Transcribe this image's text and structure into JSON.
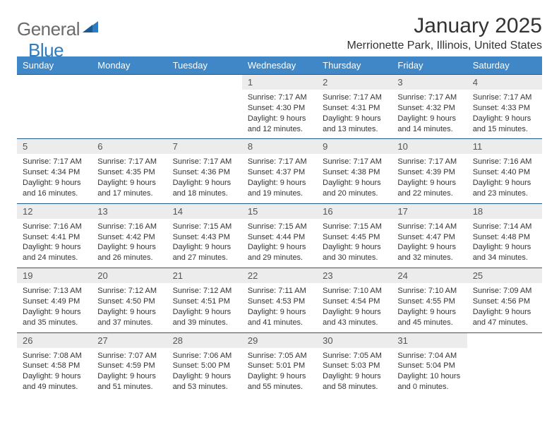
{
  "logo": {
    "word1": "General",
    "word2": "Blue"
  },
  "title": "January 2025",
  "location": "Merrionette Park, Illinois, United States",
  "header_bg": "#3f87c6",
  "weekdays": [
    "Sunday",
    "Monday",
    "Tuesday",
    "Wednesday",
    "Thursday",
    "Friday",
    "Saturday"
  ],
  "weeks": [
    {
      "nums": [
        "",
        "",
        "",
        "1",
        "2",
        "3",
        "4"
      ],
      "cells": [
        null,
        null,
        null,
        {
          "sunrise": "7:17 AM",
          "sunset": "4:30 PM",
          "daylight": "9 hours and 12 minutes."
        },
        {
          "sunrise": "7:17 AM",
          "sunset": "4:31 PM",
          "daylight": "9 hours and 13 minutes."
        },
        {
          "sunrise": "7:17 AM",
          "sunset": "4:32 PM",
          "daylight": "9 hours and 14 minutes."
        },
        {
          "sunrise": "7:17 AM",
          "sunset": "4:33 PM",
          "daylight": "9 hours and 15 minutes."
        }
      ]
    },
    {
      "nums": [
        "5",
        "6",
        "7",
        "8",
        "9",
        "10",
        "11"
      ],
      "cells": [
        {
          "sunrise": "7:17 AM",
          "sunset": "4:34 PM",
          "daylight": "9 hours and 16 minutes."
        },
        {
          "sunrise": "7:17 AM",
          "sunset": "4:35 PM",
          "daylight": "9 hours and 17 minutes."
        },
        {
          "sunrise": "7:17 AM",
          "sunset": "4:36 PM",
          "daylight": "9 hours and 18 minutes."
        },
        {
          "sunrise": "7:17 AM",
          "sunset": "4:37 PM",
          "daylight": "9 hours and 19 minutes."
        },
        {
          "sunrise": "7:17 AM",
          "sunset": "4:38 PM",
          "daylight": "9 hours and 20 minutes."
        },
        {
          "sunrise": "7:17 AM",
          "sunset": "4:39 PM",
          "daylight": "9 hours and 22 minutes."
        },
        {
          "sunrise": "7:16 AM",
          "sunset": "4:40 PM",
          "daylight": "9 hours and 23 minutes."
        }
      ]
    },
    {
      "nums": [
        "12",
        "13",
        "14",
        "15",
        "16",
        "17",
        "18"
      ],
      "cells": [
        {
          "sunrise": "7:16 AM",
          "sunset": "4:41 PM",
          "daylight": "9 hours and 24 minutes."
        },
        {
          "sunrise": "7:16 AM",
          "sunset": "4:42 PM",
          "daylight": "9 hours and 26 minutes."
        },
        {
          "sunrise": "7:15 AM",
          "sunset": "4:43 PM",
          "daylight": "9 hours and 27 minutes."
        },
        {
          "sunrise": "7:15 AM",
          "sunset": "4:44 PM",
          "daylight": "9 hours and 29 minutes."
        },
        {
          "sunrise": "7:15 AM",
          "sunset": "4:45 PM",
          "daylight": "9 hours and 30 minutes."
        },
        {
          "sunrise": "7:14 AM",
          "sunset": "4:47 PM",
          "daylight": "9 hours and 32 minutes."
        },
        {
          "sunrise": "7:14 AM",
          "sunset": "4:48 PM",
          "daylight": "9 hours and 34 minutes."
        }
      ]
    },
    {
      "nums": [
        "19",
        "20",
        "21",
        "22",
        "23",
        "24",
        "25"
      ],
      "cells": [
        {
          "sunrise": "7:13 AM",
          "sunset": "4:49 PM",
          "daylight": "9 hours and 35 minutes."
        },
        {
          "sunrise": "7:12 AM",
          "sunset": "4:50 PM",
          "daylight": "9 hours and 37 minutes."
        },
        {
          "sunrise": "7:12 AM",
          "sunset": "4:51 PM",
          "daylight": "9 hours and 39 minutes."
        },
        {
          "sunrise": "7:11 AM",
          "sunset": "4:53 PM",
          "daylight": "9 hours and 41 minutes."
        },
        {
          "sunrise": "7:10 AM",
          "sunset": "4:54 PM",
          "daylight": "9 hours and 43 minutes."
        },
        {
          "sunrise": "7:10 AM",
          "sunset": "4:55 PM",
          "daylight": "9 hours and 45 minutes."
        },
        {
          "sunrise": "7:09 AM",
          "sunset": "4:56 PM",
          "daylight": "9 hours and 47 minutes."
        }
      ]
    },
    {
      "nums": [
        "26",
        "27",
        "28",
        "29",
        "30",
        "31",
        ""
      ],
      "cells": [
        {
          "sunrise": "7:08 AM",
          "sunset": "4:58 PM",
          "daylight": "9 hours and 49 minutes."
        },
        {
          "sunrise": "7:07 AM",
          "sunset": "4:59 PM",
          "daylight": "9 hours and 51 minutes."
        },
        {
          "sunrise": "7:06 AM",
          "sunset": "5:00 PM",
          "daylight": "9 hours and 53 minutes."
        },
        {
          "sunrise": "7:05 AM",
          "sunset": "5:01 PM",
          "daylight": "9 hours and 55 minutes."
        },
        {
          "sunrise": "7:05 AM",
          "sunset": "5:03 PM",
          "daylight": "9 hours and 58 minutes."
        },
        {
          "sunrise": "7:04 AM",
          "sunset": "5:04 PM",
          "daylight": "10 hours and 0 minutes."
        },
        null
      ]
    }
  ],
  "labels": {
    "sunrise": "Sunrise:",
    "sunset": "Sunset:",
    "daylight": "Daylight:"
  }
}
